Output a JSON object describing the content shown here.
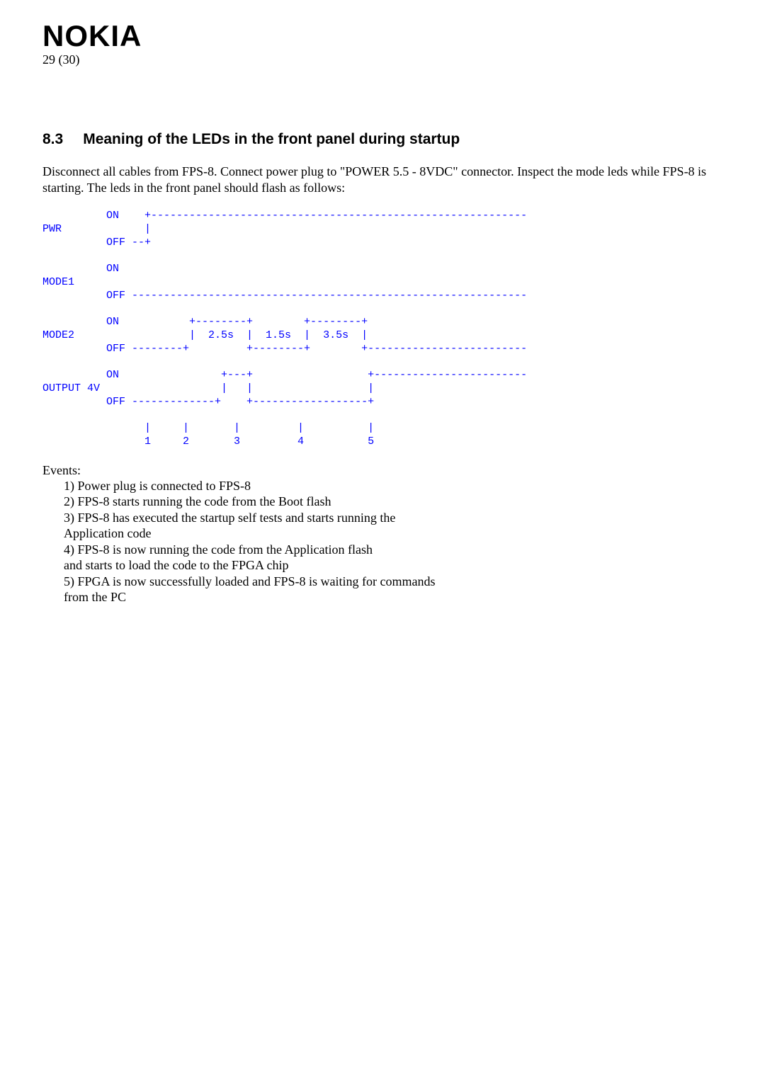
{
  "header": {
    "logo": "NOKIA",
    "page_indicator": "29 (30)"
  },
  "section": {
    "number": "8.3",
    "title": "Meaning of the LEDs in the front panel during startup"
  },
  "intro": "Disconnect all cables from FPS-8. Connect power plug to \"POWER 5.5 - 8VDC\" connector. Inspect the mode leds while FPS-8 is starting. The leds in the front panel should flash as follows:",
  "diagram": {
    "color": "#0000ff",
    "font_family": "Courier New",
    "text": "          ON    +-----------------------------------------------------------\nPWR             |\n          OFF --+\n\n          ON\nMODE1\n          OFF --------------------------------------------------------------\n\n          ON           +--------+        +--------+\nMODE2                  |  2.5s  |  1.5s  |  3.5s  |\n          OFF --------+         +--------+        +-------------------------\n\n          ON                +---+                  +------------------------\nOUTPUT 4V                   |   |                  |\n          OFF -------------+    +------------------+\n\n                |     |       |         |          |\n                1     2       3         4          5"
  },
  "events_heading": "Events:",
  "events": [
    "1) Power plug is connected to FPS-8",
    "2) FPS-8 starts running the code from the Boot flash",
    "3) FPS-8 has executed the startup self tests and starts running the",
    "    Application code",
    "4) FPS-8 is now running the code from the Application flash",
    "    and starts to load the code to the FPGA chip",
    "5) FPGA is now successfully loaded and FPS-8 is waiting for commands",
    "    from the PC"
  ]
}
